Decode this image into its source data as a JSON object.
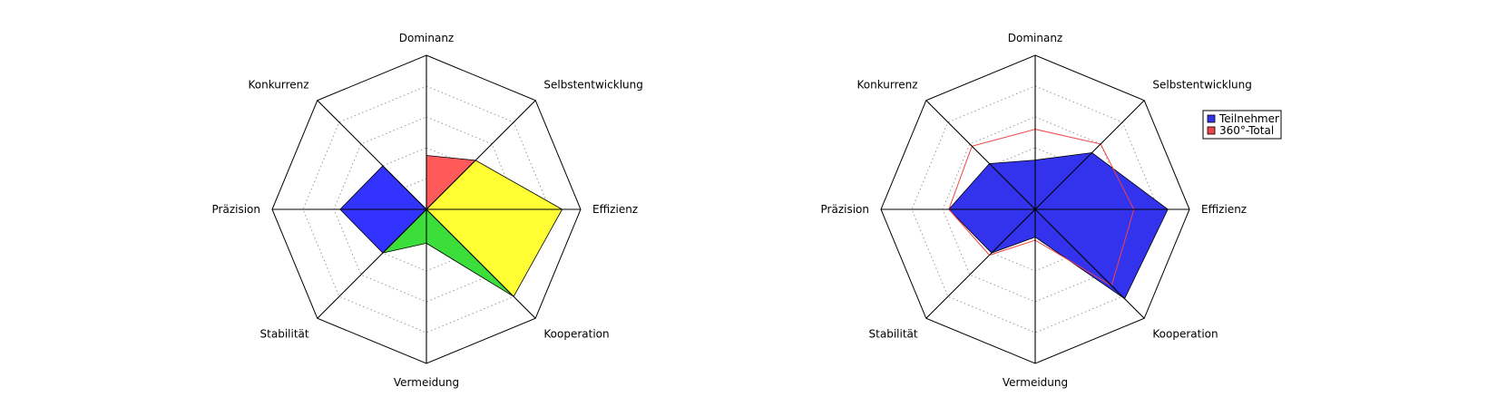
{
  "chart_data": [
    {
      "type": "radar",
      "categories": [
        "Dominanz",
        "Selbstentwicklung",
        "Effizienz",
        "Kooperation",
        "Vermeidung",
        "Stabilität",
        "Präzision",
        "Konkurrenz"
      ],
      "rlim": [
        0,
        5
      ],
      "grid": true,
      "series": [
        {
          "color": "#ff5a5a",
          "style": "fill",
          "values": [
            1.75,
            2.25,
            0,
            0,
            0,
            0,
            0,
            0
          ]
        },
        {
          "color": "#ffff33",
          "style": "fill",
          "values": [
            0,
            2.25,
            4.4,
            4.0,
            0,
            0,
            0,
            0
          ]
        },
        {
          "color": "#3bde3b",
          "style": "fill",
          "values": [
            0,
            0,
            0,
            4.0,
            1.1,
            2.0,
            0,
            0
          ]
        },
        {
          "color": "#3333ff",
          "style": "fill",
          "values": [
            0,
            0,
            0,
            0,
            0,
            2.0,
            2.8,
            2.0
          ]
        }
      ]
    },
    {
      "type": "radar",
      "categories": [
        "Dominanz",
        "Selbstentwicklung",
        "Effizienz",
        "Kooperation",
        "Vermeidung",
        "Stabilität",
        "Präzision",
        "Konkurrenz"
      ],
      "rlim": [
        0,
        5
      ],
      "grid": true,
      "legend": "right",
      "series": [
        {
          "name": "Teilnehmer",
          "color": "#3333ee",
          "style": "fill",
          "values": [
            1.6,
            2.6,
            4.3,
            4.1,
            0.9,
            2.0,
            2.8,
            2.1
          ]
        },
        {
          "name": "360°-Total",
          "color": "#ee4444",
          "style": "line",
          "values": [
            2.6,
            3.0,
            3.2,
            3.5,
            1.0,
            2.1,
            2.8,
            2.9
          ]
        }
      ]
    }
  ]
}
